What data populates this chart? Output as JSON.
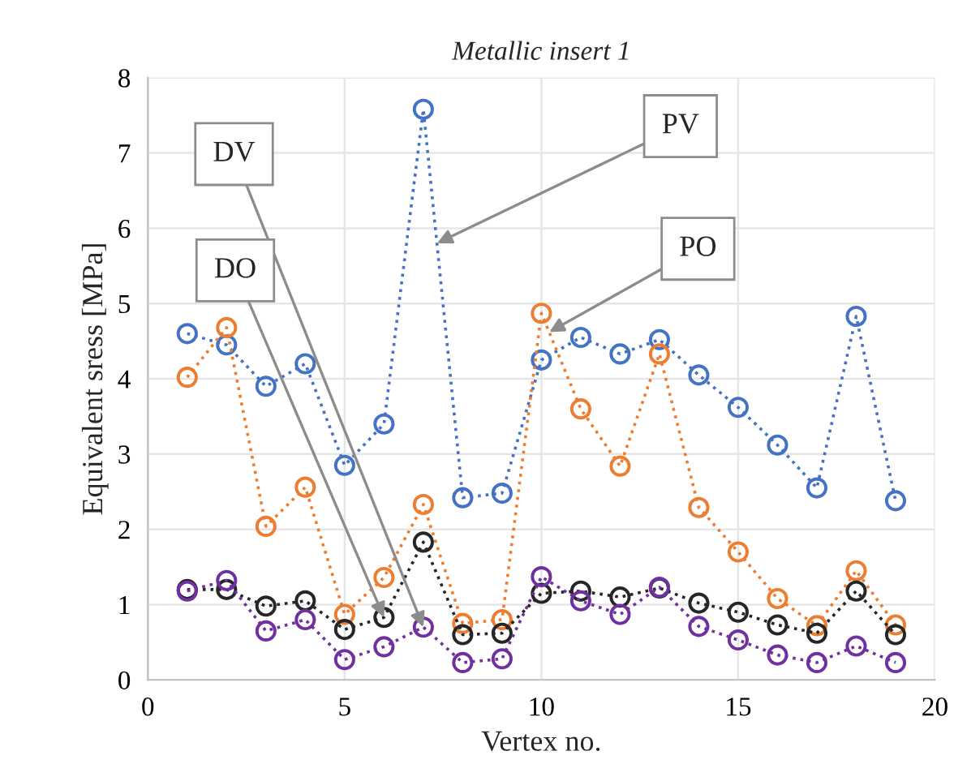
{
  "chart_data": {
    "type": "line",
    "title": "Metallic insert 1",
    "xlabel": "Vertex no.",
    "ylabel": "Equivalent sress [MPa]",
    "x": [
      1,
      2,
      3,
      4,
      5,
      6,
      7,
      8,
      9,
      10,
      11,
      12,
      13,
      14,
      15,
      16,
      17,
      18,
      19
    ],
    "series": [
      {
        "color": "#4472c4",
        "values": [
          4.6,
          4.45,
          3.9,
          4.2,
          2.85,
          3.4,
          7.58,
          2.42,
          2.48,
          4.25,
          4.55,
          4.33,
          4.52,
          4.05,
          3.62,
          3.12,
          2.55,
          4.83,
          2.38
        ]
      },
      {
        "color": "#ed7d31",
        "values": [
          4.02,
          4.68,
          2.04,
          2.56,
          0.87,
          1.36,
          2.33,
          0.75,
          0.8,
          4.87,
          3.6,
          2.84,
          4.33,
          2.29,
          1.7,
          1.08,
          0.72,
          1.45,
          0.73
        ]
      },
      {
        "color": "#262626",
        "values": [
          1.2,
          1.2,
          0.98,
          1.05,
          0.67,
          0.83,
          1.83,
          0.6,
          0.62,
          1.15,
          1.18,
          1.1,
          1.22,
          1.02,
          0.9,
          0.73,
          0.62,
          1.18,
          0.6
        ]
      },
      {
        "color": "#7030a0",
        "values": [
          1.18,
          1.32,
          0.65,
          0.8,
          0.27,
          0.44,
          0.7,
          0.23,
          0.28,
          1.37,
          1.05,
          0.87,
          1.23,
          0.71,
          0.53,
          0.33,
          0.23,
          0.45,
          0.23
        ]
      }
    ],
    "annotations": [
      {
        "text": "DV",
        "x": 7,
        "y": 0.7
      },
      {
        "text": "DO",
        "x": 6,
        "y": 0.83
      },
      {
        "text": "PV",
        "x": 7.35,
        "y": 5.8
      },
      {
        "text": "PO",
        "x": 10.2,
        "y": 4.62
      }
    ],
    "xlim": [
      0,
      20
    ],
    "xticks": [
      0,
      5,
      10,
      15,
      20
    ],
    "ylim": [
      0,
      8
    ],
    "yticks": [
      0,
      1,
      2,
      3,
      4,
      5,
      6,
      7,
      8
    ],
    "grid": true,
    "marker": "circle",
    "line_style": "dotted"
  }
}
